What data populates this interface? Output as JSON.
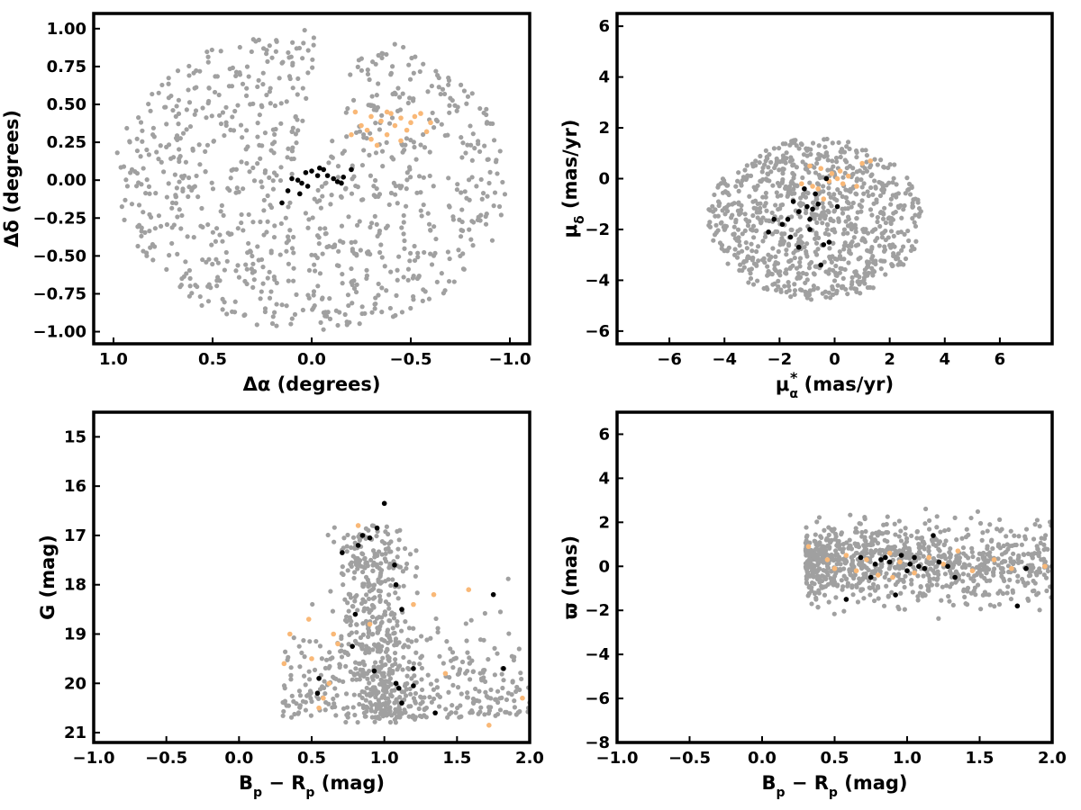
{
  "colors": {
    "field": "#a0a0a0",
    "orange": "#f9b877",
    "black": "#000000"
  },
  "chart_data": [
    {
      "id": "ad",
      "type": "scatter",
      "xlabel": [
        "Δα (degrees)"
      ],
      "ylabel": [
        "Δδ (degrees)"
      ],
      "xlim": [
        1.1,
        -1.1
      ],
      "ylim": [
        -1.08,
        1.1
      ],
      "xticks": [
        1.0,
        0.5,
        0.0,
        -0.5,
        -1.0
      ],
      "xtick_labels": [
        "1.0",
        "0.5",
        "0.0",
        "−0.5",
        "−1.0"
      ],
      "yticks": [
        1.0,
        0.75,
        0.5,
        0.25,
        0.0,
        -0.25,
        -0.5,
        -0.75,
        -1.0
      ],
      "ytick_labels": [
        "1.00",
        "0.75",
        "0.50",
        "0.25",
        "0.00",
        "−0.25",
        "−0.50",
        "−0.75",
        "−1.00"
      ],
      "grid": false,
      "field": {
        "count": 900,
        "shape": "disk",
        "center": [
          0.0,
          0.0
        ],
        "radius": [
          1.0,
          1.0
        ],
        "gap_line": {
          "from": [
            0.02,
            0.0
          ],
          "to": [
            -0.13,
            1.0
          ],
          "half_width": 0.08
        }
      },
      "orange_points": [
        [
          -0.22,
          0.45
        ],
        [
          -0.3,
          0.42
        ],
        [
          -0.35,
          0.39
        ],
        [
          -0.4,
          0.44
        ],
        [
          -0.45,
          0.41
        ],
        [
          -0.5,
          0.38
        ],
        [
          -0.55,
          0.44
        ],
        [
          -0.48,
          0.33
        ],
        [
          -0.38,
          0.3
        ],
        [
          -0.3,
          0.27
        ],
        [
          -0.25,
          0.36
        ],
        [
          -0.2,
          0.3
        ],
        [
          -0.42,
          0.36
        ],
        [
          -0.52,
          0.42
        ],
        [
          -0.6,
          0.38
        ],
        [
          -0.33,
          0.23
        ],
        [
          -0.28,
          0.33
        ],
        [
          -0.45,
          0.26
        ],
        [
          -0.38,
          0.45
        ],
        [
          -0.58,
          0.32
        ]
      ],
      "black_points": [
        [
          0.12,
          -0.07
        ],
        [
          0.1,
          0.01
        ],
        [
          0.07,
          0.0
        ],
        [
          0.05,
          -0.02
        ],
        [
          0.03,
          0.05
        ],
        [
          0.0,
          0.06
        ],
        [
          -0.03,
          0.03
        ],
        [
          -0.06,
          0.07
        ],
        [
          -0.08,
          0.03
        ],
        [
          -0.11,
          0.01
        ],
        [
          -0.13,
          -0.01
        ],
        [
          -0.16,
          0.02
        ],
        [
          -0.2,
          0.07
        ],
        [
          -0.15,
          -0.02
        ],
        [
          0.02,
          -0.04
        ],
        [
          0.15,
          -0.15
        ],
        [
          0.06,
          -0.09
        ],
        [
          -0.04,
          0.08
        ]
      ]
    },
    {
      "id": "pm",
      "type": "scatter",
      "xlabel": [
        "μ",
        "α",
        "*",
        " (mas/yr)"
      ],
      "ylabel": [
        "μ",
        "δ",
        " (mas/yr)"
      ],
      "xlim": [
        -7.9,
        7.9
      ],
      "ylim": [
        -6.5,
        6.5
      ],
      "xticks": [
        -6,
        -4,
        -2,
        0,
        2,
        4,
        6
      ],
      "xtick_labels": [
        "−6",
        "−4",
        "−2",
        "0",
        "2",
        "4",
        "6"
      ],
      "yticks": [
        -6,
        -4,
        -2,
        0,
        2,
        4,
        6
      ],
      "ytick_labels": [
        "−6",
        "−4",
        "−2",
        "0",
        "2",
        "4",
        "6"
      ],
      "grid": false,
      "field": {
        "count": 900,
        "shape": "disk",
        "center": [
          -0.7,
          -1.6
        ],
        "radius": [
          3.9,
          3.2
        ],
        "clip_y": [
          -4.9,
          4.2
        ]
      },
      "orange_points": [
        [
          -0.8,
          -0.3
        ],
        [
          -0.5,
          0.4
        ],
        [
          -0.2,
          -0.1
        ],
        [
          0.1,
          0.0
        ],
        [
          -0.9,
          0.5
        ],
        [
          0.3,
          -0.2
        ],
        [
          0.5,
          0.1
        ],
        [
          -0.4,
          -0.8
        ],
        [
          0.2,
          0.3
        ],
        [
          1.0,
          0.6
        ],
        [
          -0.6,
          -0.4
        ],
        [
          -1.2,
          -0.2
        ],
        [
          0.8,
          -0.3
        ],
        [
          -0.1,
          0.2
        ],
        [
          1.3,
          0.7
        ]
      ],
      "black_points": [
        [
          -2.2,
          -1.6
        ],
        [
          -1.7,
          -1.6
        ],
        [
          -1.3,
          -1.3
        ],
        [
          -1.0,
          -1.1
        ],
        [
          -0.8,
          -1.2
        ],
        [
          -0.6,
          -1.0
        ],
        [
          -1.1,
          -0.4
        ],
        [
          -0.7,
          -0.6
        ],
        [
          -1.9,
          -1.8
        ],
        [
          -2.4,
          -2.1
        ],
        [
          -1.6,
          -2.3
        ],
        [
          -0.9,
          -2.0
        ],
        [
          -0.4,
          -2.6
        ],
        [
          -1.3,
          -2.7
        ],
        [
          -0.5,
          -3.4
        ],
        [
          -0.2,
          -2.5
        ],
        [
          -0.9,
          -1.6
        ],
        [
          -1.5,
          -0.9
        ],
        [
          0.1,
          -1.1
        ],
        [
          -0.3,
          0.0
        ]
      ]
    },
    {
      "id": "cmd",
      "type": "scatter",
      "xlabel": [
        "B",
        "p",
        " − R",
        "p",
        " (mag)"
      ],
      "ylabel": [
        "G (mag)"
      ],
      "xlim": [
        -1.0,
        2.0
      ],
      "ylim": [
        21.2,
        14.5
      ],
      "xticks": [
        -1.0,
        -0.5,
        0.0,
        0.5,
        1.0,
        1.5,
        2.0
      ],
      "xtick_labels": [
        "−1.0",
        "−0.5",
        "0.0",
        "0.5",
        "1.0",
        "1.5",
        "2.0"
      ],
      "yticks": [
        21,
        20,
        19,
        18,
        17,
        16,
        15
      ],
      "ytick_labels": [
        "21",
        "20",
        "19",
        "18",
        "17",
        "16",
        "15"
      ],
      "grid": false,
      "field": {
        "count": 800,
        "shape": "cmd",
        "x_range": [
          0.3,
          2.0
        ],
        "y_range": [
          16.2,
          20.8
        ]
      },
      "orange_points": [
        [
          0.55,
          20.5
        ],
        [
          0.58,
          20.3
        ],
        [
          0.62,
          20.0
        ],
        [
          0.5,
          19.5
        ],
        [
          0.31,
          19.6
        ],
        [
          0.35,
          19.0
        ],
        [
          0.48,
          18.7
        ],
        [
          0.65,
          19.0
        ],
        [
          0.68,
          19.2
        ],
        [
          1.2,
          18.4
        ],
        [
          1.34,
          18.2
        ],
        [
          1.58,
          18.1
        ],
        [
          1.72,
          20.85
        ],
        [
          1.95,
          20.3
        ],
        [
          1.42,
          19.8
        ],
        [
          0.9,
          18.8
        ],
        [
          0.82,
          16.8
        ]
      ],
      "black_points": [
        [
          0.54,
          20.2
        ],
        [
          0.55,
          19.9
        ],
        [
          0.78,
          19.25
        ],
        [
          0.8,
          18.6
        ],
        [
          0.71,
          17.35
        ],
        [
          0.82,
          17.2
        ],
        [
          0.85,
          17.0
        ],
        [
          0.9,
          17.05
        ],
        [
          0.95,
          16.85
        ],
        [
          1.0,
          16.35
        ],
        [
          1.07,
          17.6
        ],
        [
          1.08,
          18.0
        ],
        [
          1.12,
          18.5
        ],
        [
          1.08,
          20.0
        ],
        [
          1.1,
          20.1
        ],
        [
          1.12,
          20.4
        ],
        [
          1.2,
          20.05
        ],
        [
          1.2,
          19.7
        ],
        [
          1.35,
          20.6
        ],
        [
          1.75,
          18.2
        ],
        [
          1.82,
          19.7
        ],
        [
          0.93,
          19.75
        ]
      ]
    },
    {
      "id": "plx",
      "type": "scatter",
      "xlabel": [
        "B",
        "p",
        " − R",
        "p",
        " (mag)"
      ],
      "ylabel": [
        "ϖ (mas)"
      ],
      "xlim": [
        -1.0,
        2.0
      ],
      "ylim": [
        -8.0,
        7.0
      ],
      "xticks": [
        -1.0,
        -0.5,
        0.0,
        0.5,
        1.0,
        1.5,
        2.0
      ],
      "xtick_labels": [
        "−1.0",
        "−0.5",
        "0.0",
        "0.5",
        "1.0",
        "1.5",
        "2.0"
      ],
      "yticks": [
        6,
        4,
        2,
        0,
        -2,
        -4,
        -6,
        -8
      ],
      "ytick_labels": [
        "6",
        "4",
        "2",
        "0",
        "−2",
        "−4",
        "−6",
        "−8"
      ],
      "grid": false,
      "field": {
        "count": 900,
        "shape": "band",
        "x_range": [
          0.3,
          2.0
        ],
        "y_center": 0.2,
        "y_sigma": 0.75
      },
      "orange_points": [
        [
          0.32,
          0.9
        ],
        [
          0.45,
          0.3
        ],
        [
          0.5,
          -0.1
        ],
        [
          0.58,
          0.5
        ],
        [
          0.65,
          -0.2
        ],
        [
          0.72,
          0.3
        ],
        [
          0.8,
          -0.4
        ],
        [
          0.88,
          0.6
        ],
        [
          0.95,
          0.2
        ],
        [
          1.05,
          -0.3
        ],
        [
          1.15,
          0.4
        ],
        [
          1.25,
          0.1
        ],
        [
          1.35,
          0.7
        ],
        [
          1.45,
          -0.2
        ],
        [
          1.6,
          0.3
        ],
        [
          1.72,
          -0.1
        ],
        [
          1.95,
          0.0
        ],
        [
          0.9,
          -0.5
        ]
      ],
      "black_points": [
        [
          0.58,
          -1.5
        ],
        [
          0.68,
          0.4
        ],
        [
          0.75,
          -0.5
        ],
        [
          0.78,
          0.1
        ],
        [
          0.82,
          0.3
        ],
        [
          0.88,
          0.2
        ],
        [
          0.92,
          -1.3
        ],
        [
          0.96,
          0.5
        ],
        [
          1.0,
          -0.2
        ],
        [
          1.05,
          0.4
        ],
        [
          1.08,
          0.0
        ],
        [
          1.12,
          -0.1
        ],
        [
          1.18,
          1.4
        ],
        [
          1.22,
          0.2
        ],
        [
          1.28,
          0.0
        ],
        [
          1.33,
          -0.5
        ],
        [
          1.76,
          -1.8
        ],
        [
          1.82,
          -0.1
        ],
        [
          0.85,
          0.4
        ],
        [
          1.02,
          0.1
        ]
      ]
    }
  ]
}
